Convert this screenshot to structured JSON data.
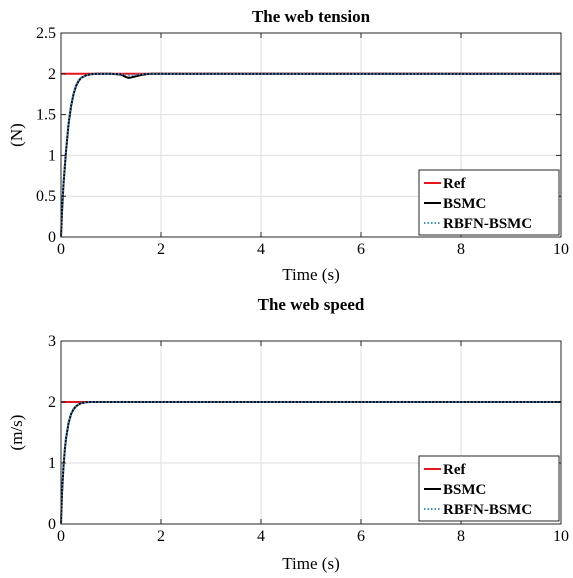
{
  "chart_data": [
    {
      "type": "line",
      "title": "The web tension",
      "xlabel": "Time (s)",
      "ylabel": "(N)",
      "xlim": [
        0,
        10
      ],
      "ylim": [
        0,
        2.5
      ],
      "xticks": [
        "0",
        "2",
        "4",
        "6",
        "8",
        "10"
      ],
      "yticks": [
        "0",
        "0.5",
        "1",
        "1.5",
        "2",
        "2.5"
      ],
      "grid": true,
      "legend_position": "bottom-right",
      "series": [
        {
          "name": "Ref",
          "color": "#e8141b",
          "style": "solid",
          "x": [
            0,
            10
          ],
          "y": [
            2,
            2
          ]
        },
        {
          "name": "BSMC",
          "color": "#000000",
          "style": "solid",
          "x": [
            0,
            0.02,
            0.05,
            0.1,
            0.15,
            0.2,
            0.25,
            0.3,
            0.35,
            0.4,
            0.5,
            0.6,
            0.7,
            0.8,
            1.0,
            1.2,
            1.3,
            1.35,
            1.4,
            1.5,
            1.6,
            1.7,
            1.8,
            2.0,
            4.0,
            6.0,
            8.0,
            10.0
          ],
          "y": [
            0,
            0.3,
            0.65,
            1.05,
            1.38,
            1.6,
            1.75,
            1.85,
            1.91,
            1.95,
            1.98,
            1.995,
            2.0,
            2.0,
            2.0,
            1.99,
            1.96,
            1.95,
            1.955,
            1.97,
            1.985,
            1.995,
            2.0,
            2.0,
            2.0,
            2.0,
            2.0,
            2.0
          ]
        },
        {
          "name": "RBFN-BSMC",
          "color": "#3d8fd1",
          "style": "dotted",
          "x": [
            0,
            0.02,
            0.05,
            0.1,
            0.15,
            0.2,
            0.25,
            0.3,
            0.35,
            0.4,
            0.5,
            0.6,
            0.7,
            0.8,
            1.0,
            1.2,
            1.3,
            1.35,
            1.4,
            1.5,
            1.6,
            1.7,
            1.8,
            2.0,
            4.0,
            6.0,
            8.0,
            10.0
          ],
          "y": [
            0,
            0.32,
            0.68,
            1.08,
            1.4,
            1.62,
            1.76,
            1.86,
            1.92,
            1.95,
            1.98,
            1.995,
            2.0,
            2.0,
            2.0,
            1.995,
            1.985,
            1.98,
            1.982,
            1.99,
            1.995,
            2.0,
            2.0,
            2.0,
            2.0,
            2.0,
            2.0,
            2.0
          ]
        }
      ]
    },
    {
      "type": "line",
      "title": "The web speed",
      "xlabel": "Time (s)",
      "ylabel": "(m/s)",
      "xlim": [
        0,
        10
      ],
      "ylim": [
        0,
        3
      ],
      "xticks": [
        "0",
        "2",
        "4",
        "6",
        "8",
        "10"
      ],
      "yticks": [
        "0",
        "1",
        "2",
        "3"
      ],
      "grid": true,
      "legend_position": "bottom-right",
      "series": [
        {
          "name": "Ref",
          "color": "#e8141b",
          "style": "solid",
          "x": [
            0,
            10
          ],
          "y": [
            2,
            2
          ]
        },
        {
          "name": "BSMC",
          "color": "#000000",
          "style": "solid",
          "x": [
            0,
            0.02,
            0.05,
            0.08,
            0.1,
            0.15,
            0.2,
            0.25,
            0.3,
            0.35,
            0.4,
            0.5,
            0.6,
            1.0,
            2.0,
            4.0,
            6.0,
            8.0,
            10.0
          ],
          "y": [
            0,
            0.5,
            0.95,
            1.25,
            1.4,
            1.65,
            1.8,
            1.88,
            1.93,
            1.96,
            1.98,
            1.995,
            2.0,
            2.0,
            2.0,
            2.0,
            2.0,
            2.0,
            2.0
          ]
        },
        {
          "name": "RBFN-BSMC",
          "color": "#3d8fd1",
          "style": "dotted",
          "x": [
            0,
            0.02,
            0.05,
            0.08,
            0.1,
            0.15,
            0.2,
            0.25,
            0.3,
            0.35,
            0.4,
            0.5,
            0.6,
            1.0,
            2.0,
            4.0,
            6.0,
            8.0,
            10.0
          ],
          "y": [
            0,
            0.52,
            0.97,
            1.27,
            1.42,
            1.67,
            1.81,
            1.89,
            1.94,
            1.965,
            1.98,
            1.995,
            2.0,
            2.0,
            2.0,
            2.0,
            2.0,
            2.0,
            2.0
          ]
        }
      ]
    }
  ]
}
